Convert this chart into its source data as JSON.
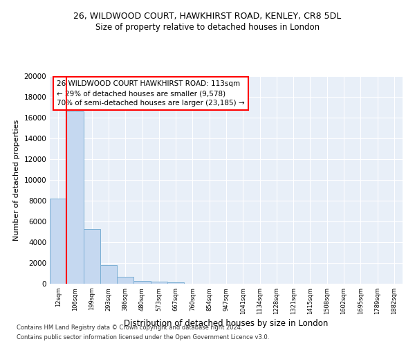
{
  "title1": "26, WILDWOOD COURT, HAWKHIRST ROAD, KENLEY, CR8 5DL",
  "title2": "Size of property relative to detached houses in London",
  "xlabel": "Distribution of detached houses by size in London",
  "ylabel": "Number of detached properties",
  "bar_color": "#c5d8f0",
  "bar_edge_color": "#7bafd4",
  "categories": [
    "12sqm",
    "106sqm",
    "199sqm",
    "293sqm",
    "386sqm",
    "480sqm",
    "573sqm",
    "667sqm",
    "760sqm",
    "854sqm",
    "947sqm",
    "1041sqm",
    "1134sqm",
    "1228sqm",
    "1321sqm",
    "1415sqm",
    "1508sqm",
    "1602sqm",
    "1695sqm",
    "1789sqm",
    "1882sqm"
  ],
  "values": [
    8200,
    16600,
    5300,
    1800,
    700,
    300,
    200,
    130,
    0,
    0,
    0,
    0,
    0,
    0,
    0,
    0,
    0,
    0,
    0,
    0,
    0
  ],
  "annotation_text": "26 WILDWOOD COURT HAWKHIRST ROAD: 113sqm\n← 29% of detached houses are smaller (9,578)\n70% of semi-detached houses are larger (23,185) →",
  "annotation_box_color": "white",
  "annotation_box_edge": "red",
  "vline_color": "red",
  "vline_linewidth": 1.5,
  "ylim": [
    0,
    20000
  ],
  "yticks": [
    0,
    2000,
    4000,
    6000,
    8000,
    10000,
    12000,
    14000,
    16000,
    18000,
    20000
  ],
  "footer1": "Contains HM Land Registry data © Crown copyright and database right 2024.",
  "footer2": "Contains public sector information licensed under the Open Government Licence v3.0.",
  "background_color": "#e8eff8"
}
